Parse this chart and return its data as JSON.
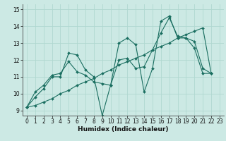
{
  "title": "",
  "xlabel": "Humidex (Indice chaleur)",
  "ylabel": "",
  "background_color": "#cce9e4",
  "grid_color": "#b0d8d0",
  "line_color": "#1a6e60",
  "xlim": [
    -0.5,
    23.5
  ],
  "ylim": [
    8.7,
    15.3
  ],
  "xticks": [
    0,
    1,
    2,
    3,
    4,
    5,
    6,
    7,
    8,
    9,
    10,
    11,
    12,
    13,
    14,
    15,
    16,
    17,
    18,
    19,
    20,
    21,
    22,
    23
  ],
  "yticks": [
    9,
    10,
    11,
    12,
    13,
    14,
    15
  ],
  "series": [
    [
      9.2,
      9.8,
      10.3,
      11.0,
      11.0,
      12.4,
      12.3,
      11.4,
      11.0,
      8.7,
      10.5,
      13.0,
      13.3,
      12.9,
      10.1,
      11.5,
      14.3,
      14.6,
      13.3,
      13.3,
      12.7,
      11.2,
      11.2
    ],
    [
      9.2,
      9.3,
      9.5,
      9.7,
      10.0,
      10.2,
      10.5,
      10.7,
      10.9,
      11.2,
      11.4,
      11.7,
      11.9,
      12.1,
      12.3,
      12.6,
      12.8,
      13.0,
      13.3,
      13.5,
      13.7,
      13.9,
      11.2
    ],
    [
      9.2,
      10.1,
      10.5,
      11.1,
      11.2,
      11.9,
      11.3,
      11.1,
      10.7,
      10.6,
      10.5,
      12.0,
      12.1,
      11.5,
      11.6,
      12.6,
      13.6,
      14.5,
      13.4,
      13.3,
      13.1,
      11.5,
      11.2
    ]
  ],
  "series_x": [
    [
      0,
      1,
      2,
      3,
      4,
      5,
      6,
      7,
      8,
      9,
      10,
      11,
      12,
      13,
      14,
      15,
      16,
      17,
      18,
      19,
      20,
      21,
      22
    ],
    [
      0,
      1,
      2,
      3,
      4,
      5,
      6,
      7,
      8,
      9,
      10,
      11,
      12,
      13,
      14,
      15,
      16,
      17,
      18,
      19,
      20,
      21,
      22
    ],
    [
      0,
      1,
      2,
      3,
      4,
      5,
      6,
      7,
      8,
      9,
      10,
      11,
      12,
      13,
      14,
      15,
      16,
      17,
      18,
      19,
      20,
      21,
      22
    ]
  ],
  "xlabel_fontsize": 6.5,
  "tick_fontsize": 5.5,
  "marker_size": 2.0
}
